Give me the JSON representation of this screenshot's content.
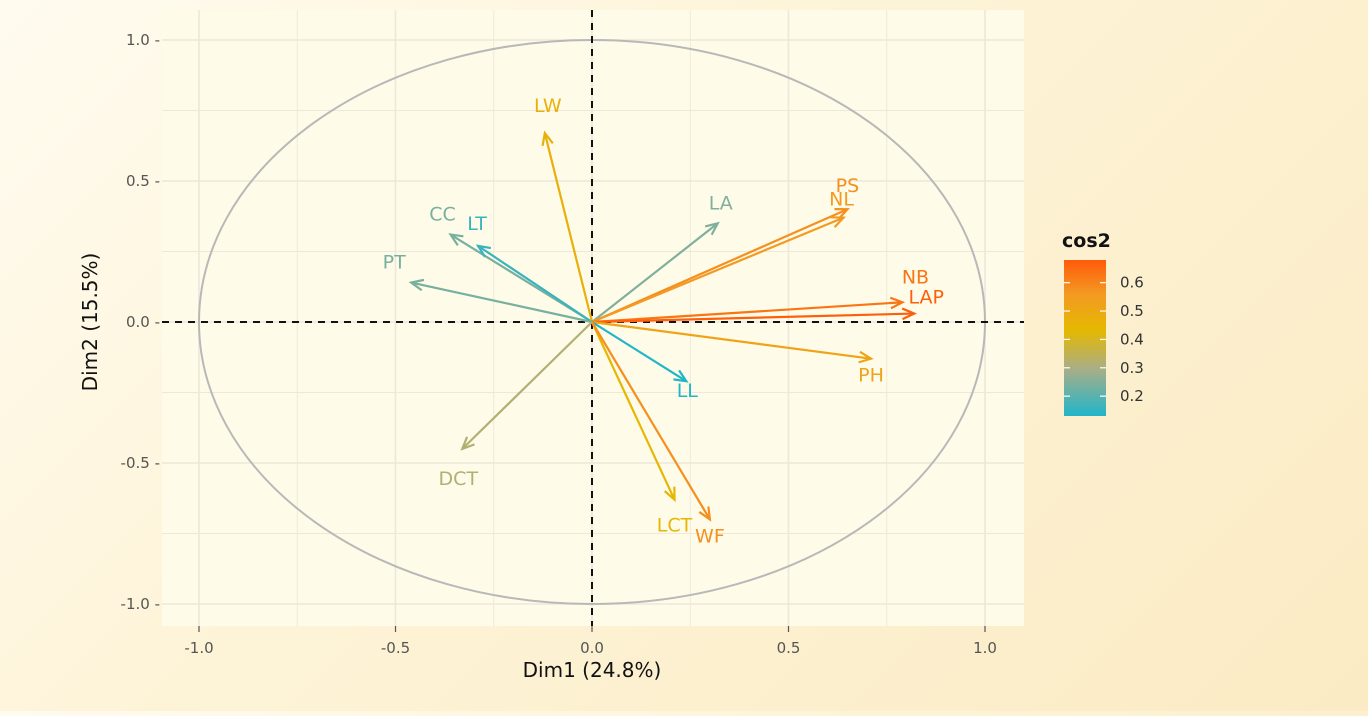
{
  "chart_data": {
    "type": "scatter",
    "subtype": "pca-variables-correlation-circle",
    "xlabel": "Dim1 (24.8%)",
    "ylabel": "Dim2 (15.5%)",
    "xlim": [
      -1.0,
      1.1
    ],
    "ylim": [
      -1.05,
      1.05
    ],
    "x_ticks": [
      -1.0,
      -0.5,
      0.0,
      0.5,
      1.0
    ],
    "x_tick_labels": [
      "-1.0",
      "-0.5",
      "0.0",
      "0.5",
      "1.0"
    ],
    "y_ticks": [
      -1.0,
      -0.5,
      0.0,
      0.5,
      1.0
    ],
    "y_tick_labels": [
      "-1.0 -",
      "-0.5 -",
      "0.0 -",
      "0.5 -",
      "1.0 -"
    ],
    "grid": true,
    "legend": {
      "title": "cos2",
      "position": "right",
      "ticks": [
        0.2,
        0.3,
        0.4,
        0.5,
        0.6
      ],
      "tick_labels": [
        "0.2",
        "0.3",
        "0.4",
        "0.5",
        "0.6"
      ],
      "range": [
        0.13,
        0.68
      ],
      "colors": [
        "#20b5c9",
        "#a8ae88",
        "#e5b800",
        "#f39a22",
        "#ff5a0a"
      ]
    },
    "variables": [
      {
        "name": "LW",
        "x": -0.12,
        "y": 0.67,
        "cos2": 0.47
      },
      {
        "name": "LA",
        "x": 0.32,
        "y": 0.35,
        "cos2": 0.25
      },
      {
        "name": "PS",
        "x": 0.65,
        "y": 0.4,
        "cos2": 0.58
      },
      {
        "name": "NL",
        "x": 0.64,
        "y": 0.37,
        "cos2": 0.56
      },
      {
        "name": "CC",
        "x": -0.36,
        "y": 0.31,
        "cos2": 0.24
      },
      {
        "name": "LT",
        "x": -0.29,
        "y": 0.27,
        "cos2": 0.16
      },
      {
        "name": "PT",
        "x": -0.46,
        "y": 0.14,
        "cos2": 0.24
      },
      {
        "name": "NB",
        "x": 0.79,
        "y": 0.07,
        "cos2": 0.63
      },
      {
        "name": "LAP",
        "x": 0.82,
        "y": 0.03,
        "cos2": 0.67
      },
      {
        "name": "PH",
        "x": 0.71,
        "y": -0.13,
        "cos2": 0.52
      },
      {
        "name": "LL",
        "x": 0.24,
        "y": -0.21,
        "cos2": 0.12
      },
      {
        "name": "DCT",
        "x": -0.33,
        "y": -0.45,
        "cos2": 0.32
      },
      {
        "name": "LCT",
        "x": 0.21,
        "y": -0.63,
        "cos2": 0.44
      },
      {
        "name": "WF",
        "x": 0.3,
        "y": -0.7,
        "cos2": 0.58
      }
    ]
  }
}
